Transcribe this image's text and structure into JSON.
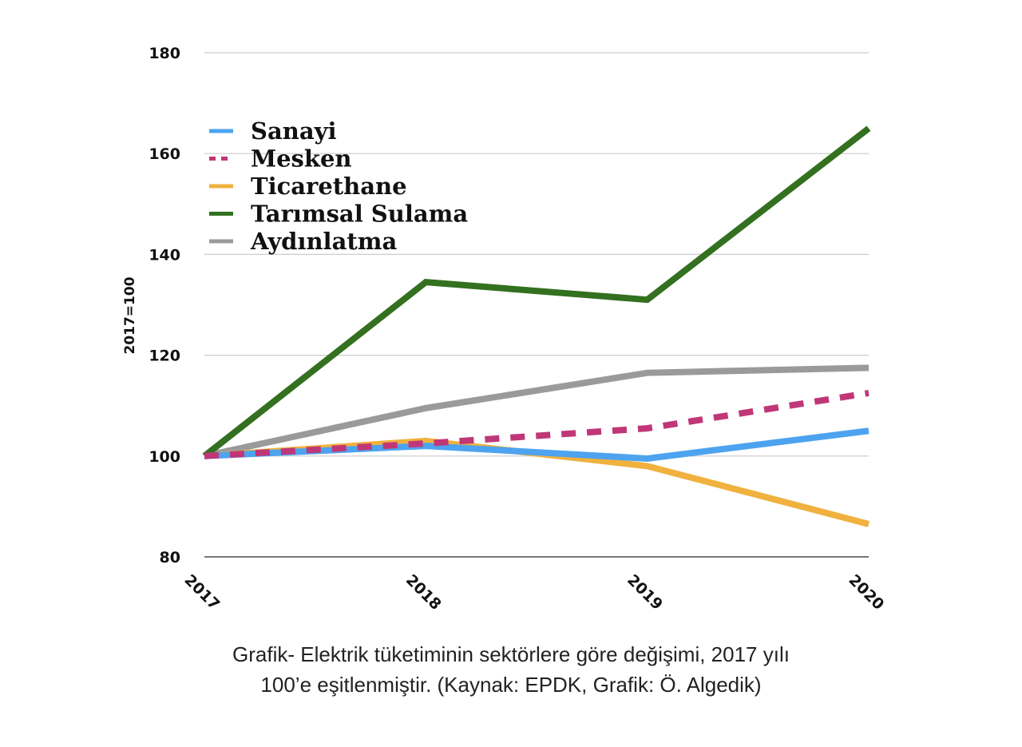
{
  "chart_data": {
    "type": "line",
    "x": [
      "2017",
      "2018",
      "2019",
      "2020"
    ],
    "ylabel": "2017=100",
    "ylim": [
      80,
      180
    ],
    "yticks": [
      80,
      100,
      120,
      140,
      160,
      180
    ],
    "grid": true,
    "legend_position": "top-left",
    "series": [
      {
        "name": "Sanayi",
        "color": "#4DA3F0",
        "dash": "solid",
        "values": [
          100,
          102,
          99.5,
          105
        ]
      },
      {
        "name": "Mesken",
        "color": "#C03778",
        "dash": "dashed",
        "values": [
          100,
          102.5,
          105.5,
          112.5
        ]
      },
      {
        "name": "Ticarethane",
        "color": "#F0B13E",
        "dash": "solid",
        "values": [
          100,
          103,
          98,
          86.5
        ]
      },
      {
        "name": "Tarımsal Sulama",
        "color": "#33701F",
        "dash": "solid",
        "values": [
          100,
          134.5,
          131,
          165
        ]
      },
      {
        "name": "Aydınlatma",
        "color": "#9A9A9A",
        "dash": "solid",
        "values": [
          100,
          109.5,
          116.5,
          117.5
        ]
      }
    ]
  },
  "caption": {
    "line1": "Grafik- Elektrik tüketiminin sektörlere göre değişimi, 2017 yılı",
    "line2": "100’e eşitlenmiştir. (Kaynak: EPDK, Grafik: Ö. Algedik)"
  }
}
